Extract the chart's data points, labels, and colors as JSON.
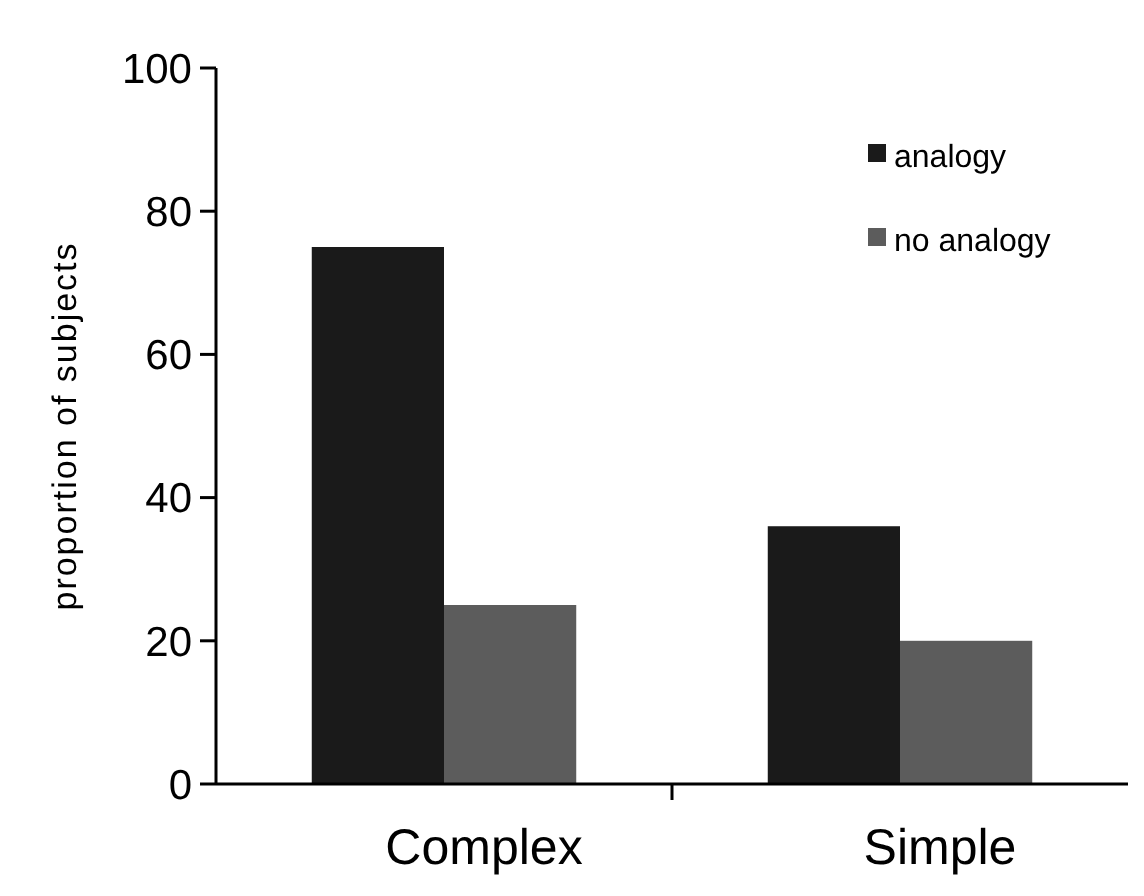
{
  "chart_data": {
    "type": "bar",
    "ylabel": "proportion of subjects",
    "categories": [
      "Complex",
      "Simple"
    ],
    "series": [
      {
        "name": "analogy",
        "color": "#1a1a1a",
        "values": [
          75,
          36
        ]
      },
      {
        "name": "no analogy",
        "color": "#5c5c5c",
        "values": [
          25,
          20
        ]
      }
    ],
    "ylim": [
      0,
      100
    ],
    "yticks": [
      0,
      20,
      40,
      60,
      80,
      100
    ],
    "grid": false,
    "legend": "top right"
  }
}
